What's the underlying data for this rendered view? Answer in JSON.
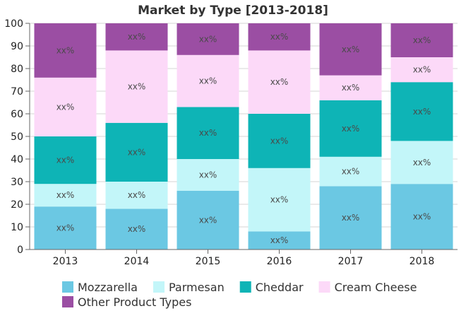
{
  "chart_data": {
    "type": "bar",
    "stacked": true,
    "normalized_percent": true,
    "title": "Market by Type [2013-2018]",
    "categories": [
      "2013",
      "2014",
      "2015",
      "2016",
      "2017",
      "2018"
    ],
    "ylim": [
      0,
      100
    ],
    "yticks": [
      0,
      10,
      20,
      30,
      40,
      50,
      60,
      70,
      80,
      90,
      100
    ],
    "data_label": "xx%",
    "grid": true,
    "legend_position": "bottom",
    "series": [
      {
        "name": "Mozzarella",
        "color": "#6bc8e3",
        "values": [
          19,
          18,
          26,
          8,
          28,
          29
        ]
      },
      {
        "name": "Parmesan",
        "color": "#c3f6f9",
        "values": [
          10,
          12,
          14,
          28,
          13,
          19
        ]
      },
      {
        "name": "Cheddar",
        "color": "#0eb4b6",
        "values": [
          21,
          26,
          23,
          24,
          25,
          26
        ]
      },
      {
        "name": "Cream Cheese",
        "color": "#fcd9f8",
        "values": [
          26,
          32,
          23,
          28,
          11,
          11
        ]
      },
      {
        "name": "Other Product Types",
        "color": "#9b4ea3",
        "values": [
          24,
          12,
          14,
          12,
          23,
          15
        ]
      }
    ]
  }
}
